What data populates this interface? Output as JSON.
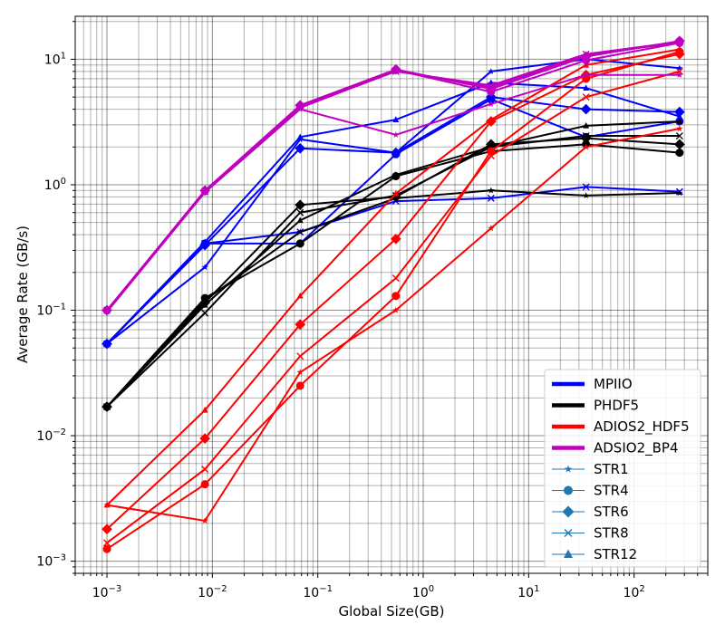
{
  "chart_data": {
    "type": "line",
    "xscale": "log",
    "yscale": "log",
    "xlabel": "Global Size(GB)",
    "ylabel": "Average Rate (GB/s)",
    "xlim": [
      0.0005,
      500
    ],
    "ylim": [
      0.0008,
      22
    ],
    "grid": true,
    "legend_position": "lower-right",
    "x_ticks": [
      {
        "value": 0.001,
        "mantissa": "10",
        "exp": "−3"
      },
      {
        "value": 0.01,
        "mantissa": "10",
        "exp": "−2"
      },
      {
        "value": 0.1,
        "mantissa": "10",
        "exp": "−1"
      },
      {
        "value": 1,
        "mantissa": "10",
        "exp": "0"
      },
      {
        "value": 10,
        "mantissa": "10",
        "exp": "1"
      },
      {
        "value": 100,
        "mantissa": "10",
        "exp": "2"
      }
    ],
    "y_ticks": [
      {
        "value": 0.001,
        "mantissa": "10",
        "exp": "−3"
      },
      {
        "value": 0.01,
        "mantissa": "10",
        "exp": "−2"
      },
      {
        "value": 0.1,
        "mantissa": "10",
        "exp": "−1"
      },
      {
        "value": 1,
        "mantissa": "10",
        "exp": "0"
      },
      {
        "value": 10,
        "mantissa": "10",
        "exp": "1"
      }
    ],
    "x": [
      0.001,
      0.0085,
      0.068,
      0.55,
      4.4,
      35,
      270
    ],
    "libraries": [
      {
        "name": "MPIIO",
        "color": "#0000ff"
      },
      {
        "name": "PHDF5",
        "color": "#000000"
      },
      {
        "name": "ADIOS2_HDF5",
        "color": "#ff0000"
      },
      {
        "name": "ADSIO2_BP4",
        "color": "#bf00bf"
      }
    ],
    "stride_markers": [
      {
        "name": "STR1",
        "marker": "star"
      },
      {
        "name": "STR4",
        "marker": "circle"
      },
      {
        "name": "STR6",
        "marker": "diamond"
      },
      {
        "name": "STR8",
        "marker": "x"
      },
      {
        "name": "STR12",
        "marker": "triangle"
      }
    ],
    "legend_marker_color": "#1f77b4",
    "series": [
      {
        "library": "MPIIO",
        "stride": "STR1",
        "values": [
          0.054,
          0.22,
          2.3,
          1.8,
          8.0,
          10.0,
          8.5
        ]
      },
      {
        "library": "MPIIO",
        "stride": "STR4",
        "values": [
          0.054,
          0.34,
          0.34,
          1.75,
          4.8,
          2.4,
          3.2
        ]
      },
      {
        "library": "MPIIO",
        "stride": "STR6",
        "values": [
          0.054,
          0.33,
          1.95,
          1.8,
          5.0,
          4.0,
          3.8
        ]
      },
      {
        "library": "MPIIO",
        "stride": "STR8",
        "values": [
          0.054,
          0.34,
          0.42,
          0.74,
          0.78,
          0.96,
          0.88
        ]
      },
      {
        "library": "MPIIO",
        "stride": "STR12",
        "values": [
          0.054,
          0.35,
          2.4,
          3.3,
          6.5,
          5.9,
          3.5
        ]
      },
      {
        "library": "PHDF5",
        "stride": "STR1",
        "values": [
          0.017,
          0.12,
          0.42,
          0.78,
          0.9,
          0.82,
          0.86
        ]
      },
      {
        "library": "PHDF5",
        "stride": "STR4",
        "values": [
          0.017,
          0.125,
          0.34,
          1.17,
          1.85,
          2.1,
          1.8
        ]
      },
      {
        "library": "PHDF5",
        "stride": "STR6",
        "values": [
          0.017,
          0.115,
          0.69,
          0.8,
          2.1,
          2.35,
          2.1
        ]
      },
      {
        "library": "PHDF5",
        "stride": "STR8",
        "values": [
          0.017,
          0.095,
          0.6,
          0.82,
          2.0,
          2.45,
          2.45
        ]
      },
      {
        "library": "PHDF5",
        "stride": "STR12",
        "values": [
          0.017,
          0.11,
          0.52,
          1.2,
          2.0,
          2.95,
          3.2
        ]
      },
      {
        "library": "ADIOS2_HDF5",
        "stride": "STR1",
        "values": [
          0.0028,
          0.0021,
          0.032,
          0.1,
          0.45,
          2.0,
          2.8
        ]
      },
      {
        "library": "ADIOS2_HDF5",
        "stride": "STR4",
        "values": [
          0.00125,
          0.0041,
          0.025,
          0.13,
          1.85,
          7.0,
          11.5
        ]
      },
      {
        "library": "ADIOS2_HDF5",
        "stride": "STR6",
        "values": [
          0.0018,
          0.0095,
          0.077,
          0.37,
          3.2,
          7.5,
          11.0
        ]
      },
      {
        "library": "ADIOS2_HDF5",
        "stride": "STR8",
        "values": [
          0.0014,
          0.0054,
          0.043,
          0.18,
          1.7,
          5.0,
          8.0
        ]
      },
      {
        "library": "ADIOS2_HDF5",
        "stride": "STR12",
        "values": [
          0.0028,
          0.016,
          0.13,
          0.85,
          3.3,
          9.0,
          12.0
        ]
      },
      {
        "library": "ADSIO2_BP4",
        "stride": "STR1",
        "values": [
          0.097,
          0.87,
          4.0,
          2.5,
          4.4,
          7.5,
          7.5
        ]
      },
      {
        "library": "ADSIO2_BP4",
        "stride": "STR4",
        "values": [
          0.1,
          0.89,
          4.2,
          8.2,
          5.5,
          9.8,
          13.5
        ]
      },
      {
        "library": "ADSIO2_BP4",
        "stride": "STR6",
        "values": [
          0.1,
          0.9,
          4.3,
          8.3,
          5.8,
          10.5,
          14.0
        ]
      },
      {
        "library": "ADSIO2_BP4",
        "stride": "STR8",
        "values": [
          0.1,
          0.88,
          4.15,
          8.0,
          6.2,
          11.0,
          13.8
        ]
      },
      {
        "library": "ADSIO2_BP4",
        "stride": "STR12",
        "values": [
          0.098,
          0.9,
          4.1,
          8.1,
          6.0,
          10.8,
          13.6
        ]
      }
    ]
  }
}
